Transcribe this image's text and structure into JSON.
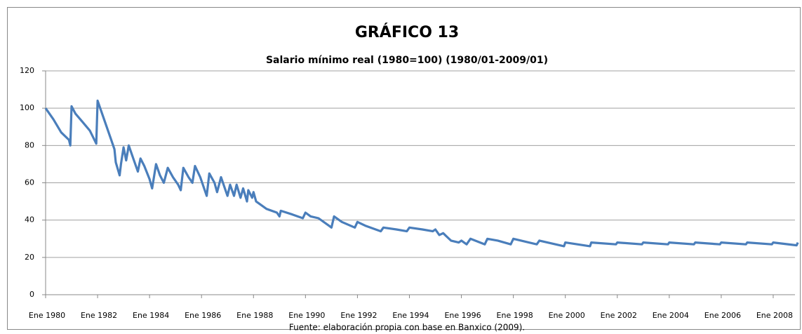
{
  "chart_data": {
    "type": "line",
    "title": "GRÁFICO 13",
    "subtitle": "Salario mínimo real (1980=100) (1980/01-2009/01)",
    "source": "Fuente: elaboración propia con base en Banxico (2009).",
    "x": [
      1980.0,
      1980.3,
      1980.6,
      1980.9,
      1980.95,
      1981.0,
      1981.15,
      1981.4,
      1981.7,
      1981.95,
      1982.0,
      1982.2,
      1982.5,
      1982.65,
      1982.7,
      1982.85,
      1982.9,
      1983.0,
      1983.1,
      1983.2,
      1983.4,
      1983.55,
      1983.65,
      1983.8,
      1984.0,
      1984.1,
      1984.25,
      1984.4,
      1984.55,
      1984.7,
      1984.9,
      1985.1,
      1985.2,
      1985.3,
      1985.5,
      1985.65,
      1985.75,
      1985.95,
      1986.1,
      1986.2,
      1986.3,
      1986.5,
      1986.6,
      1986.75,
      1986.9,
      1987.0,
      1987.1,
      1987.25,
      1987.35,
      1987.5,
      1987.6,
      1987.75,
      1987.8,
      1987.95,
      1988.0,
      1988.1,
      1988.5,
      1988.9,
      1989.0,
      1989.05,
      1989.5,
      1989.9,
      1990.0,
      1990.2,
      1990.5,
      1990.9,
      1991.0,
      1991.1,
      1991.4,
      1991.9,
      1992.0,
      1992.3,
      1992.9,
      1993.0,
      1993.5,
      1993.9,
      1994.0,
      1994.5,
      1994.9,
      1995.0,
      1995.15,
      1995.3,
      1995.6,
      1995.9,
      1996.0,
      1996.2,
      1996.35,
      1996.9,
      1997.0,
      1997.4,
      1997.9,
      1998.0,
      1998.9,
      1999.0,
      1999.95,
      2000.0,
      2000.95,
      2001.0,
      2001.95,
      2002.0,
      2002.95,
      2003.0,
      2003.95,
      2004.0,
      2004.95,
      2005.0,
      2005.95,
      2006.0,
      2006.95,
      2007.0,
      2007.95,
      2008.0,
      2008.9,
      2008.95
    ],
    "series": [
      {
        "name": "Salario mínimo real",
        "color": "#4a7ebb",
        "values": [
          100,
          94,
          87,
          83,
          80,
          101,
          97,
          93,
          88,
          81,
          104,
          96,
          84,
          78,
          71,
          64,
          70,
          79,
          72,
          80,
          72,
          66,
          73,
          69,
          62,
          57,
          70,
          64,
          60,
          68,
          63,
          59,
          56,
          68,
          63,
          60,
          69,
          63,
          57,
          53,
          65,
          60,
          55,
          63,
          57,
          53,
          59,
          53,
          59,
          52,
          57,
          50,
          56,
          52,
          55,
          50,
          46,
          44,
          42,
          45,
          43,
          41,
          44,
          42,
          41,
          37,
          36,
          42,
          39,
          36,
          39,
          37,
          34,
          36,
          35,
          34,
          36,
          35,
          34,
          35,
          32,
          33,
          29,
          28,
          29,
          27,
          30,
          27,
          30,
          29,
          27,
          30,
          27,
          29,
          26,
          28,
          26,
          28,
          27,
          28,
          27,
          28,
          27,
          28,
          27,
          28,
          27,
          28,
          27,
          28,
          27,
          28,
          26.5,
          28
        ]
      }
    ],
    "xlim": [
      1980,
      2009
    ],
    "xticks": [
      {
        "value": 1980,
        "label": "Ene 1980"
      },
      {
        "value": 1982,
        "label": "Ene 1982"
      },
      {
        "value": 1984,
        "label": "Ene 1984"
      },
      {
        "value": 1986,
        "label": "Ene 1986"
      },
      {
        "value": 1988,
        "label": "Ene 1988"
      },
      {
        "value": 1990,
        "label": "Ene 1990"
      },
      {
        "value": 1992,
        "label": "Ene 1992"
      },
      {
        "value": 1994,
        "label": "Ene 1994"
      },
      {
        "value": 1996,
        "label": "Ene 1996"
      },
      {
        "value": 1998,
        "label": "Ene 1998"
      },
      {
        "value": 2000,
        "label": "Ene 2000"
      },
      {
        "value": 2002,
        "label": "Ene 2002"
      },
      {
        "value": 2004,
        "label": "Ene 2004"
      },
      {
        "value": 2006,
        "label": "Ene 2006"
      },
      {
        "value": 2008,
        "label": "Ene 2008"
      }
    ],
    "ylim": [
      0,
      120
    ],
    "yticks": [
      0,
      20,
      40,
      60,
      80,
      100,
      120
    ],
    "grid": true
  }
}
